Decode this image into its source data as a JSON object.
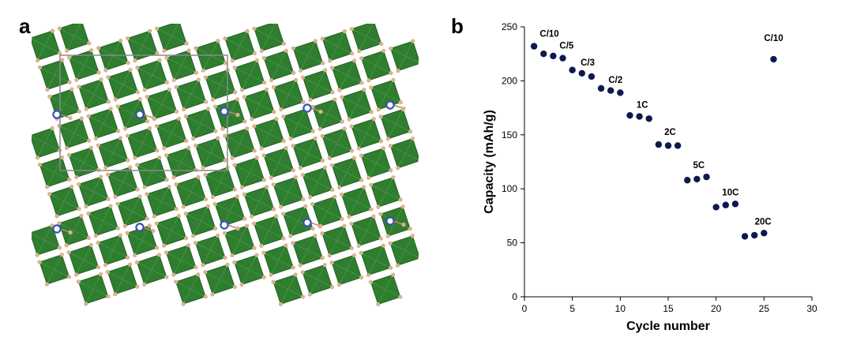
{
  "figure": {
    "panel_a_label": "a",
    "panel_b_label": "b"
  },
  "colors": {
    "octahedron": "#2f7d2f",
    "octahedron_dark": "#1f5a1f",
    "oxygen": "#d9b38c",
    "cation": "#3a4fb5",
    "cell_edge": "#8a8a8a",
    "points": "#0d1a4d"
  },
  "chart_data": {
    "type": "scatter",
    "title": "",
    "xlabel": "Cycle number",
    "ylabel": "Capacity  (mAh/g)",
    "xlim": [
      0,
      30
    ],
    "ylim": [
      0,
      250
    ],
    "xticks": [
      0,
      5,
      10,
      15,
      20,
      25,
      30
    ],
    "yticks": [
      0,
      50,
      100,
      150,
      200,
      250
    ],
    "grid": false,
    "series": [
      {
        "x": [
          1,
          2,
          3,
          4,
          5,
          6,
          7,
          8,
          9,
          10,
          11,
          12,
          13,
          14,
          15,
          16,
          17,
          18,
          19,
          20,
          21,
          22,
          23,
          24,
          25,
          26
        ],
        "y": [
          232,
          225,
          223,
          221,
          210,
          207,
          204,
          193,
          191,
          189,
          168,
          167,
          165,
          141,
          140,
          140,
          108,
          109,
          111,
          83,
          85,
          86,
          56,
          57,
          59,
          220
        ]
      }
    ],
    "annotations": [
      {
        "text": "C/10",
        "x": 2.6,
        "y": 241
      },
      {
        "text": "C/5",
        "x": 4.4,
        "y": 230
      },
      {
        "text": "C/3",
        "x": 6.6,
        "y": 214
      },
      {
        "text": "C/2",
        "x": 9.5,
        "y": 198
      },
      {
        "text": "1C",
        "x": 12.3,
        "y": 175
      },
      {
        "text": "2C",
        "x": 15.2,
        "y": 150
      },
      {
        "text": "5C",
        "x": 18.2,
        "y": 119
      },
      {
        "text": "10C",
        "x": 21.5,
        "y": 94
      },
      {
        "text": "20C",
        "x": 24.9,
        "y": 67
      },
      {
        "text": "C/10",
        "x": 26.0,
        "y": 237
      }
    ]
  }
}
